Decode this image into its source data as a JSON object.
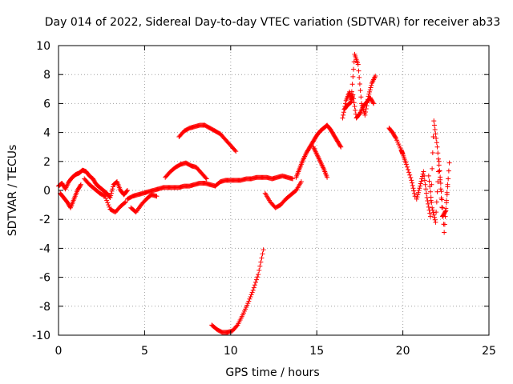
{
  "chart_data": {
    "type": "scatter",
    "title": "Day 014 of 2022, Sidereal Day-to-day VTEC variation (SDTVAR) for receiver ab33",
    "xlabel": "GPS time / hours",
    "ylabel": "SDTVAR / TECUs",
    "xlim": [
      0,
      25
    ],
    "ylim": [
      -10,
      10
    ],
    "xticks": [
      0,
      5,
      10,
      15,
      20,
      25
    ],
    "yticks": [
      -10,
      -8,
      -6,
      -4,
      -2,
      0,
      2,
      4,
      6,
      8,
      10
    ],
    "grid": true,
    "marker": "+",
    "series_color": "#ff0000",
    "segments": [
      {
        "name": "early-band",
        "x": [
          0.0,
          0.2,
          0.4,
          0.6,
          0.8,
          1.0,
          1.2,
          1.4,
          1.6,
          1.8,
          2.0,
          2.2,
          2.4,
          2.6,
          2.8,
          3.0,
          3.2,
          3.4,
          3.6,
          3.8,
          4.0
        ],
        "y": [
          0.3,
          0.5,
          0.1,
          0.6,
          0.9,
          1.1,
          1.2,
          1.4,
          1.3,
          1.0,
          0.8,
          0.4,
          0.2,
          0.0,
          -0.2,
          -0.5,
          0.4,
          0.6,
          0.0,
          -0.3,
          0.0
        ]
      },
      {
        "name": "early-dip",
        "x": [
          0.1,
          0.3,
          0.5,
          0.7,
          0.9,
          1.1,
          1.3
        ],
        "y": [
          -0.2,
          -0.5,
          -0.8,
          -1.2,
          -0.6,
          0.0,
          0.4
        ]
      },
      {
        "name": "early-low",
        "x": [
          1.5,
          1.8,
          2.1,
          2.4,
          2.7,
          3.0,
          3.3,
          3.6,
          3.9
        ],
        "y": [
          0.8,
          0.4,
          0.1,
          -0.2,
          -0.4,
          -1.3,
          -1.5,
          -1.1,
          -0.8
        ]
      },
      {
        "name": "mid-band",
        "x": [
          4.0,
          4.3,
          4.6,
          4.9,
          5.2,
          5.5,
          5.8,
          6.1,
          6.4,
          6.7,
          7.0,
          7.3,
          7.6,
          7.9,
          8.2,
          8.5,
          8.8,
          9.1,
          9.4,
          9.7,
          10.0,
          10.3,
          10.6,
          10.9,
          11.2,
          11.5,
          11.8,
          12.1,
          12.4,
          12.7,
          13.0,
          13.3,
          13.6
        ],
        "y": [
          -0.6,
          -0.4,
          -0.3,
          -0.2,
          -0.1,
          0.0,
          0.1,
          0.2,
          0.2,
          0.2,
          0.2,
          0.3,
          0.3,
          0.4,
          0.5,
          0.5,
          0.4,
          0.3,
          0.6,
          0.7,
          0.7,
          0.7,
          0.7,
          0.8,
          0.8,
          0.9,
          0.9,
          0.9,
          0.8,
          0.9,
          1.0,
          0.9,
          0.8
        ]
      },
      {
        "name": "mid-low",
        "x": [
          4.2,
          4.5,
          4.8,
          5.1,
          5.4,
          5.7
        ],
        "y": [
          -1.2,
          -1.5,
          -1.0,
          -0.6,
          -0.3,
          -0.4
        ]
      },
      {
        "name": "bump-7",
        "x": [
          6.2,
          6.5,
          6.8,
          7.1,
          7.4,
          7.7,
          8.0,
          8.3,
          8.6
        ],
        "y": [
          0.9,
          1.3,
          1.6,
          1.8,
          1.9,
          1.7,
          1.6,
          1.2,
          0.8
        ]
      },
      {
        "name": "arc-8",
        "x": [
          7.0,
          7.3,
          7.6,
          7.9,
          8.2,
          8.5,
          8.8,
          9.1,
          9.4,
          9.7,
          10.0,
          10.3
        ],
        "y": [
          3.7,
          4.1,
          4.3,
          4.4,
          4.5,
          4.5,
          4.3,
          4.1,
          3.9,
          3.5,
          3.1,
          2.7
        ]
      },
      {
        "name": "deep-rise",
        "x": [
          8.9,
          9.2,
          9.5,
          9.8,
          10.1,
          10.4,
          10.7,
          11.0,
          11.3,
          11.6,
          11.9
        ],
        "y": [
          -9.3,
          -9.6,
          -9.8,
          -9.8,
          -9.7,
          -9.3,
          -8.6,
          -7.8,
          -6.9,
          -5.8,
          -4.1
        ]
      },
      {
        "name": "dip-12",
        "x": [
          12.0,
          12.3,
          12.6,
          12.9,
          13.2,
          13.5,
          13.8,
          14.1
        ],
        "y": [
          -0.2,
          -0.8,
          -1.2,
          -1.0,
          -0.6,
          -0.3,
          0.0,
          0.6
        ]
      },
      {
        "name": "rise-14",
        "x": [
          13.8,
          14.0,
          14.2,
          14.4,
          14.6,
          14.8,
          15.0,
          15.2,
          15.4,
          15.6,
          15.8,
          16.0,
          16.2,
          16.4
        ],
        "y": [
          0.9,
          1.5,
          2.1,
          2.6,
          3.0,
          3.4,
          3.8,
          4.1,
          4.3,
          4.5,
          4.2,
          3.8,
          3.4,
          3.0
        ]
      },
      {
        "name": "fall-15",
        "x": [
          14.8,
          15.0,
          15.2,
          15.4,
          15.6
        ],
        "y": [
          3.0,
          2.5,
          2.0,
          1.5,
          0.9
        ]
      },
      {
        "name": "peak-17",
        "x": [
          16.5,
          16.7,
          16.9,
          17.0,
          17.2,
          17.4,
          17.6,
          17.8,
          18.0,
          18.2,
          18.4
        ],
        "y": [
          5.0,
          6.2,
          6.8,
          6.3,
          9.4,
          8.7,
          6.0,
          5.2,
          6.5,
          7.4,
          7.9
        ]
      },
      {
        "name": "dense-17",
        "x": [
          16.6,
          16.8,
          17.0,
          17.1,
          17.3,
          17.5,
          17.7,
          17.9,
          18.1,
          18.3
        ],
        "y": [
          5.6,
          5.9,
          6.1,
          6.6,
          5.0,
          5.3,
          5.8,
          6.1,
          6.4,
          6.0
        ]
      },
      {
        "name": "cluster-19",
        "x": [
          19.2,
          19.4,
          19.6,
          19.9,
          20.0,
          20.2,
          20.5,
          20.7
        ],
        "y": [
          4.3,
          4.0,
          3.6,
          2.8,
          2.5,
          1.8,
          0.7,
          -0.4
        ]
      },
      {
        "name": "cluster-21",
        "x": [
          20.8,
          21.0,
          21.2,
          21.4,
          21.6,
          21.8,
          22.0,
          22.2,
          22.4,
          22.6
        ],
        "y": [
          -0.6,
          0.3,
          1.3,
          -0.5,
          -1.8,
          4.8,
          3.0,
          0.5,
          -2.9,
          0.4
        ]
      },
      {
        "name": "cluster-22",
        "x": [
          21.5,
          21.7,
          21.9,
          22.1,
          22.3,
          22.5,
          22.7
        ],
        "y": [
          1.0,
          -1.2,
          -2.2,
          2.0,
          -1.8,
          -1.4,
          1.9
        ]
      }
    ]
  }
}
